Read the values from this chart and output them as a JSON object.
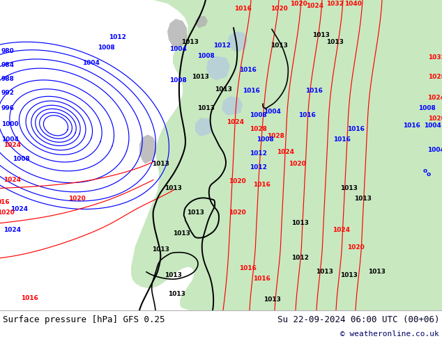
{
  "title_left": "Surface pressure [hPa] GFS 0.25",
  "title_right": "Su 22-09-2024 06:00 UTC (00+06)",
  "copyright": "© weatheronline.co.uk",
  "bg_color": "#ffffff",
  "ocean_color": "#d8d8d8",
  "land_color": "#c8e8c0",
  "gray_color": "#b0b0b0",
  "bottom_bar_color": "#ddeeff",
  "fig_width": 6.34,
  "fig_height": 4.9,
  "dpi": 100,
  "font_size_bottom": 9,
  "font_size_label": 6.5
}
